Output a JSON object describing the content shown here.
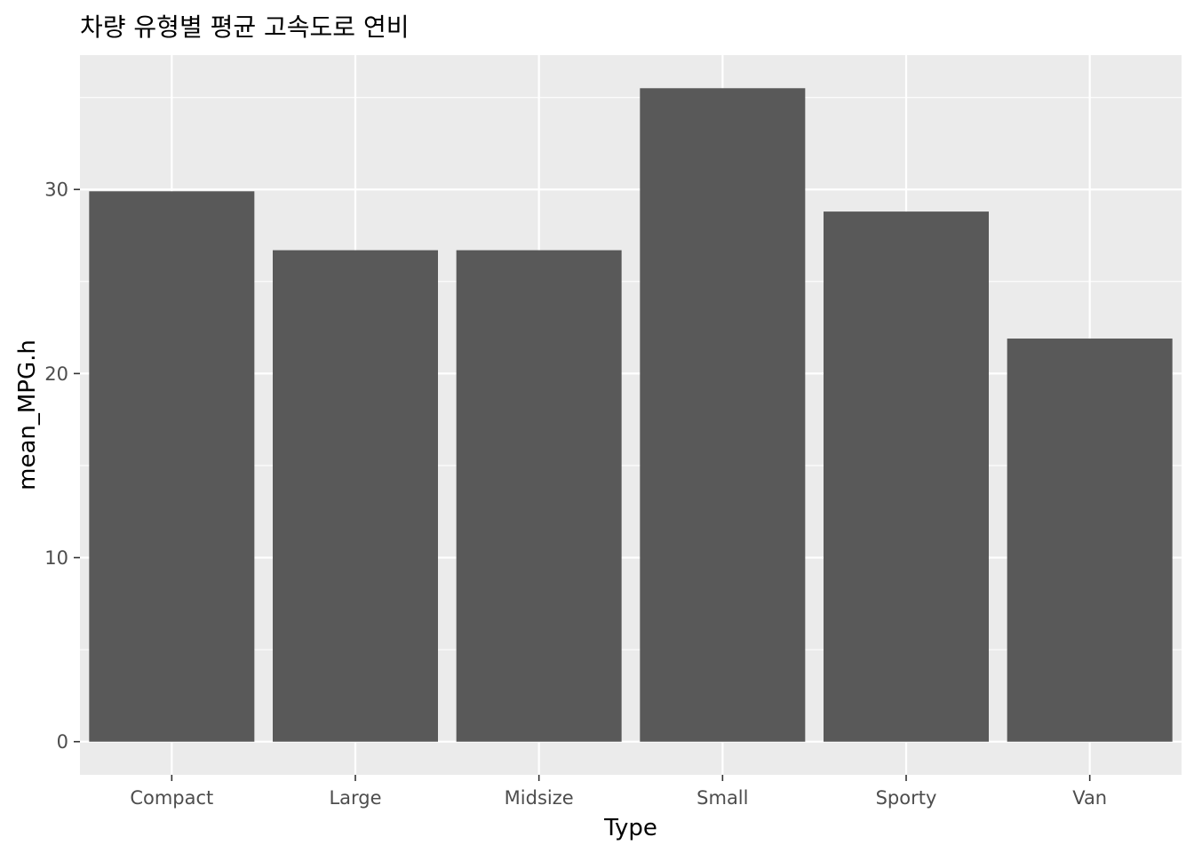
{
  "chart_data": {
    "type": "bar",
    "title": "차량 유형별 평균 고속도로 연비",
    "xlabel": "Type",
    "ylabel": "mean_MPG.h",
    "categories": [
      "Compact",
      "Large",
      "Midsize",
      "Small",
      "Sporty",
      "Van"
    ],
    "values": [
      29.9,
      26.7,
      26.7,
      35.5,
      28.8,
      21.9
    ],
    "ylim": [
      -1.8,
      37.3
    ],
    "yticks": [
      0,
      10,
      20,
      30
    ],
    "grid": true,
    "legend": "none",
    "colors": {
      "bar": "#595959",
      "panel": "#ebebeb",
      "grid": "#ffffff",
      "tick": "#333333",
      "tick_label": "#4d4d4d"
    }
  }
}
